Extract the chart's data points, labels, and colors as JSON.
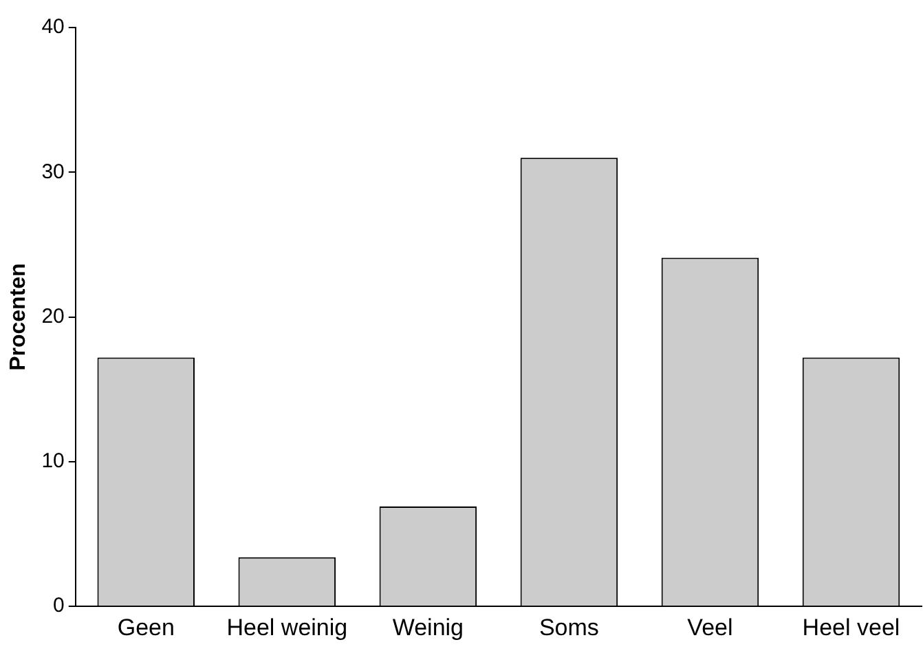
{
  "chart_data": {
    "type": "bar",
    "ylabel": "Procenten",
    "categories": [
      "Geen",
      "Heel weinig",
      "Weinig",
      "Soms",
      "Veel",
      "Heel veel"
    ],
    "values": [
      17.2,
      3.4,
      6.9,
      31.0,
      24.1,
      17.2
    ],
    "color": "#cccccc",
    "ylim": [
      0,
      40
    ],
    "yticks": [
      0,
      10,
      20,
      30,
      40
    ],
    "grid": false,
    "legend": false
  }
}
